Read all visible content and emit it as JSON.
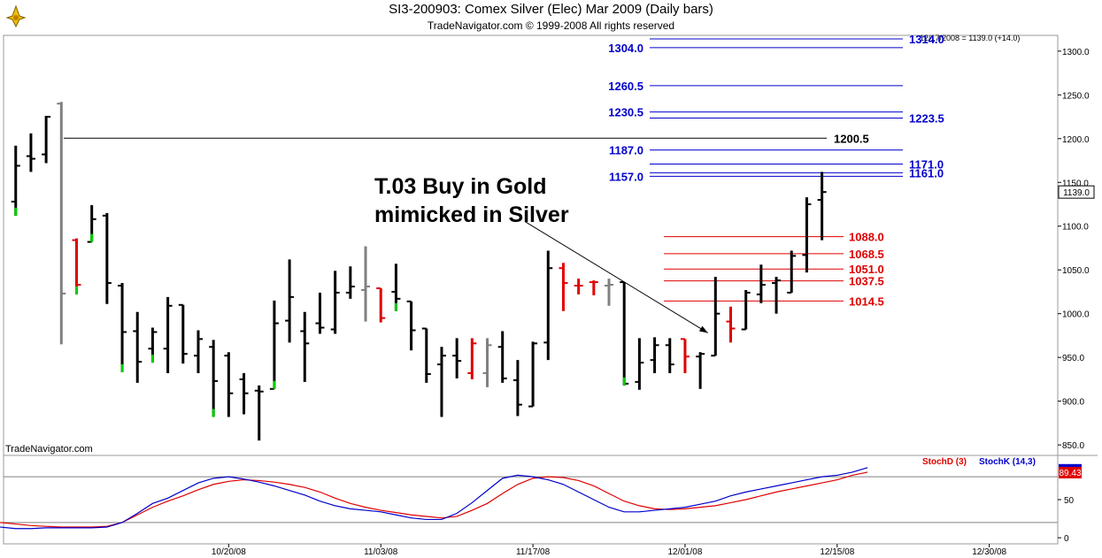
{
  "header": {
    "title": "SI3-200903:  Comex Silver (Elec) Mar 2009  (Daily bars)",
    "subtitle": "TradeNavigator.com © 1999-2008 All rights reserved",
    "last_bar_readout": "12/17/2008 = 1139.0 (+14.0)",
    "watermark": "TradeNavigator.com"
  },
  "colors": {
    "up_bar": "#000000",
    "down_bar": "#e00000",
    "neutral_bar": "#808080",
    "close_tick_highlight": "#00cc00",
    "blue_target": "#0000cc",
    "red_support": "#e00000",
    "stoch_d": "#e00000",
    "stoch_k": "#0000cc",
    "last_price_box": "#ffffff"
  },
  "chart_data": [
    {
      "type": "ohlc",
      "title": "SI3-200903:  Comex Silver (Elec) Mar 2009  (Daily bars)",
      "ylim": [
        838,
        1318
      ],
      "y_ticks": [
        850,
        900,
        950,
        1000,
        1050,
        1100,
        1150,
        1200,
        1250,
        1300
      ],
      "x_tick_labels": [
        "10/20/08",
        "11/03/08",
        "11/17/08",
        "12/01/08",
        "12/15/08",
        "12/30/08"
      ],
      "x_tick_positions": [
        14,
        24,
        34,
        44,
        54,
        64
      ],
      "x_range": [
        -0.8,
        68.5
      ],
      "last_price_label": "1139.0",
      "bars": [
        {
          "i": 0,
          "o": 1128,
          "h": 1192,
          "l": 1112,
          "c": 1169,
          "col": "up",
          "clr": "green"
        },
        {
          "i": 1,
          "o": 1180,
          "h": 1206,
          "l": 1162,
          "c": 1177,
          "col": "up"
        },
        {
          "i": 2,
          "o": 1182,
          "h": 1226,
          "l": 1172,
          "c": 1225,
          "col": "up"
        },
        {
          "i": 3,
          "o": 1240,
          "h": 1242,
          "l": 965,
          "c": 1023,
          "col": "neutral"
        },
        {
          "i": 4,
          "o": 1084,
          "h": 1086,
          "l": 1022,
          "c": 1033,
          "col": "down",
          "clr": "green"
        },
        {
          "i": 5,
          "o": 1082,
          "h": 1124,
          "l": 1082,
          "c": 1108,
          "col": "up",
          "clr": "green"
        },
        {
          "i": 6,
          "o": 1112,
          "h": 1115,
          "l": 1011,
          "c": 1035,
          "col": "up"
        },
        {
          "i": 7,
          "o": 1032,
          "h": 1035,
          "l": 933,
          "c": 979,
          "col": "up",
          "clr": "green"
        },
        {
          "i": 8,
          "o": 980,
          "h": 1002,
          "l": 921,
          "c": 945,
          "col": "up"
        },
        {
          "i": 9,
          "o": 960,
          "h": 984,
          "l": 944,
          "c": 979,
          "col": "up",
          "clr": "green"
        },
        {
          "i": 10,
          "o": 960,
          "h": 1019,
          "l": 932,
          "c": 1009,
          "col": "up"
        },
        {
          "i": 11,
          "o": 1010,
          "h": 1010,
          "l": 943,
          "c": 954,
          "col": "up"
        },
        {
          "i": 12,
          "o": 952,
          "h": 981,
          "l": 932,
          "c": 971,
          "col": "up"
        },
        {
          "i": 13,
          "o": 962,
          "h": 970,
          "l": 882,
          "c": 923,
          "col": "up",
          "clr": "green"
        },
        {
          "i": 14,
          "o": 952,
          "h": 956,
          "l": 882,
          "c": 909,
          "col": "up"
        },
        {
          "i": 15,
          "o": 925,
          "h": 932,
          "l": 885,
          "c": 909,
          "col": "up"
        },
        {
          "i": 16,
          "o": 912,
          "h": 918,
          "l": 855,
          "c": 911,
          "col": "up"
        },
        {
          "i": 17,
          "o": 914,
          "h": 1015,
          "l": 914,
          "c": 989,
          "col": "up",
          "clr": "green"
        },
        {
          "i": 18,
          "o": 992,
          "h": 1062,
          "l": 967,
          "c": 1019,
          "col": "up"
        },
        {
          "i": 19,
          "o": 980,
          "h": 1002,
          "l": 922,
          "c": 966,
          "col": "up"
        },
        {
          "i": 20,
          "o": 989,
          "h": 1024,
          "l": 977,
          "c": 984,
          "col": "up"
        },
        {
          "i": 21,
          "o": 982,
          "h": 1049,
          "l": 977,
          "c": 1024,
          "col": "up"
        },
        {
          "i": 22,
          "o": 1024,
          "h": 1054,
          "l": 1017,
          "c": 1031,
          "col": "up"
        },
        {
          "i": 23,
          "o": 1027,
          "h": 1077,
          "l": 991,
          "c": 1031,
          "col": "neutral"
        },
        {
          "i": 24,
          "o": 1029,
          "h": 1029,
          "l": 990,
          "c": 995,
          "col": "down"
        },
        {
          "i": 25,
          "o": 1025,
          "h": 1057,
          "l": 1003,
          "c": 1017,
          "col": "up",
          "clr": "green"
        },
        {
          "i": 26,
          "o": 1014,
          "h": 1014,
          "l": 958,
          "c": 981,
          "col": "up"
        },
        {
          "i": 27,
          "o": 983,
          "h": 983,
          "l": 921,
          "c": 931,
          "col": "up"
        },
        {
          "i": 28,
          "o": 942,
          "h": 962,
          "l": 882,
          "c": 952,
          "col": "up"
        },
        {
          "i": 29,
          "o": 952,
          "h": 972,
          "l": 926,
          "c": 946,
          "col": "up"
        },
        {
          "i": 30,
          "o": 932,
          "h": 972,
          "l": 925,
          "c": 966,
          "col": "down"
        },
        {
          "i": 31,
          "o": 932,
          "h": 972,
          "l": 916,
          "c": 964,
          "col": "neutral"
        },
        {
          "i": 32,
          "o": 962,
          "h": 980,
          "l": 921,
          "c": 926,
          "col": "up"
        },
        {
          "i": 33,
          "o": 924,
          "h": 947,
          "l": 883,
          "c": 896,
          "col": "up"
        },
        {
          "i": 34,
          "o": 894,
          "h": 968,
          "l": 894,
          "c": 966,
          "col": "up"
        },
        {
          "i": 35,
          "o": 967,
          "h": 1072,
          "l": 947,
          "c": 1052,
          "col": "up"
        },
        {
          "i": 36,
          "o": 1052,
          "h": 1058,
          "l": 1003,
          "c": 1035,
          "col": "down"
        },
        {
          "i": 37,
          "o": 1032,
          "h": 1040,
          "l": 1022,
          "c": 1032,
          "col": "down"
        },
        {
          "i": 38,
          "o": 1036,
          "h": 1038,
          "l": 1021,
          "c": 1036,
          "col": "down"
        },
        {
          "i": 39,
          "o": 1032,
          "h": 1040,
          "l": 1009,
          "c": 1033,
          "col": "neutral"
        },
        {
          "i": 40,
          "o": 1036,
          "h": 1036,
          "l": 918,
          "c": 920,
          "col": "up",
          "clr": "green"
        },
        {
          "i": 41,
          "o": 922,
          "h": 972,
          "l": 913,
          "c": 944,
          "col": "up"
        },
        {
          "i": 42,
          "o": 947,
          "h": 973,
          "l": 932,
          "c": 964,
          "col": "up"
        },
        {
          "i": 43,
          "o": 964,
          "h": 972,
          "l": 932,
          "c": 942,
          "col": "up"
        },
        {
          "i": 44,
          "o": 971,
          "h": 971,
          "l": 932,
          "c": 951,
          "col": "down"
        },
        {
          "i": 45,
          "o": 951,
          "h": 956,
          "l": 914,
          "c": 954,
          "col": "up"
        },
        {
          "i": 46,
          "o": 952,
          "h": 1042,
          "l": 952,
          "c": 1000,
          "col": "up"
        },
        {
          "i": 47,
          "o": 991,
          "h": 1008,
          "l": 967,
          "c": 983,
          "col": "down"
        },
        {
          "i": 48,
          "o": 982,
          "h": 1027,
          "l": 982,
          "c": 1024,
          "col": "up"
        },
        {
          "i": 49,
          "o": 1022,
          "h": 1056,
          "l": 1012,
          "c": 1033,
          "col": "up"
        },
        {
          "i": 50,
          "o": 1035,
          "h": 1042,
          "l": 1000,
          "c": 1038,
          "col": "up"
        },
        {
          "i": 51,
          "o": 1024,
          "h": 1072,
          "l": 1024,
          "c": 1066,
          "col": "up"
        },
        {
          "i": 52,
          "o": 1067,
          "h": 1133,
          "l": 1047,
          "c": 1125,
          "col": "up"
        },
        {
          "i": 53,
          "o": 1130,
          "h": 1162,
          "l": 1084,
          "c": 1139,
          "col": "up"
        }
      ],
      "levels_blue_left": [
        {
          "value": 1304.0,
          "label": "1304.0"
        },
        {
          "value": 1260.5,
          "label": "1260.5"
        },
        {
          "value": 1230.5,
          "label": "1230.5"
        },
        {
          "value": 1187.0,
          "label": "1187.0"
        },
        {
          "value": 1157.0,
          "label": "1157.0"
        }
      ],
      "levels_blue_right": [
        {
          "value": 1314.0,
          "label": "1314.0"
        },
        {
          "value": 1223.5,
          "label": "1223.5"
        },
        {
          "value": 1171.0,
          "label": "1171.0"
        },
        {
          "value": 1161.0,
          "label": "1161.0"
        }
      ],
      "level_black": {
        "value": 1200.5,
        "label": "1200.5"
      },
      "levels_red": [
        {
          "value": 1088.0,
          "label": "1088.0"
        },
        {
          "value": 1068.5,
          "label": "1068.5"
        },
        {
          "value": 1051.0,
          "label": "1051.0"
        },
        {
          "value": 1037.5,
          "label": "1037.5"
        },
        {
          "value": 1014.5,
          "label": "1014.5"
        }
      ],
      "annotation": {
        "lines": [
          "T.03 Buy in Gold",
          "mimicked in Silver"
        ],
        "arrow_from": {
          "i": 33.5,
          "v": 1105
        },
        "arrow_to": {
          "i": 45.5,
          "v": 978
        }
      }
    },
    {
      "type": "line",
      "ylim": [
        -8,
        108
      ],
      "y_ticks": [
        0,
        50
      ],
      "ref_lines": [
        20,
        80
      ],
      "last_value_labels": [
        "89.43"
      ],
      "series": [
        {
          "name": "StochD (3)",
          "color": "#e00000",
          "values": [
            20,
            20,
            22,
            25,
            28,
            30,
            30,
            29,
            28,
            27,
            24,
            20,
            18,
            16,
            15,
            14,
            14,
            14,
            15,
            20,
            30,
            40,
            48,
            55,
            63,
            70,
            74,
            76,
            75,
            73,
            70,
            66,
            60,
            52,
            45,
            40,
            36,
            33,
            30,
            28,
            26,
            28,
            36,
            45,
            58,
            70,
            78,
            80,
            79,
            75,
            68,
            58,
            48,
            42,
            38,
            37,
            38,
            40,
            42,
            46,
            50,
            55,
            60,
            64,
            68,
            72,
            76,
            82,
            86
          ]
        },
        {
          "name": "StochK (14,3)",
          "color": "#0000cc",
          "values": [
            18,
            18,
            25,
            32,
            30,
            28,
            28,
            27,
            25,
            22,
            18,
            14,
            12,
            12,
            13,
            13,
            13,
            13,
            14,
            20,
            32,
            45,
            52,
            62,
            72,
            78,
            80,
            77,
            73,
            68,
            62,
            56,
            48,
            42,
            38,
            36,
            34,
            30,
            26,
            24,
            24,
            32,
            46,
            62,
            78,
            82,
            80,
            76,
            70,
            60,
            50,
            40,
            34,
            34,
            36,
            38,
            40,
            44,
            48,
            55,
            60,
            64,
            68,
            72,
            76,
            80,
            82,
            86,
            92
          ]
        }
      ],
      "legend": [
        "StochD (3)",
        "StochK (14,3)"
      ]
    }
  ]
}
